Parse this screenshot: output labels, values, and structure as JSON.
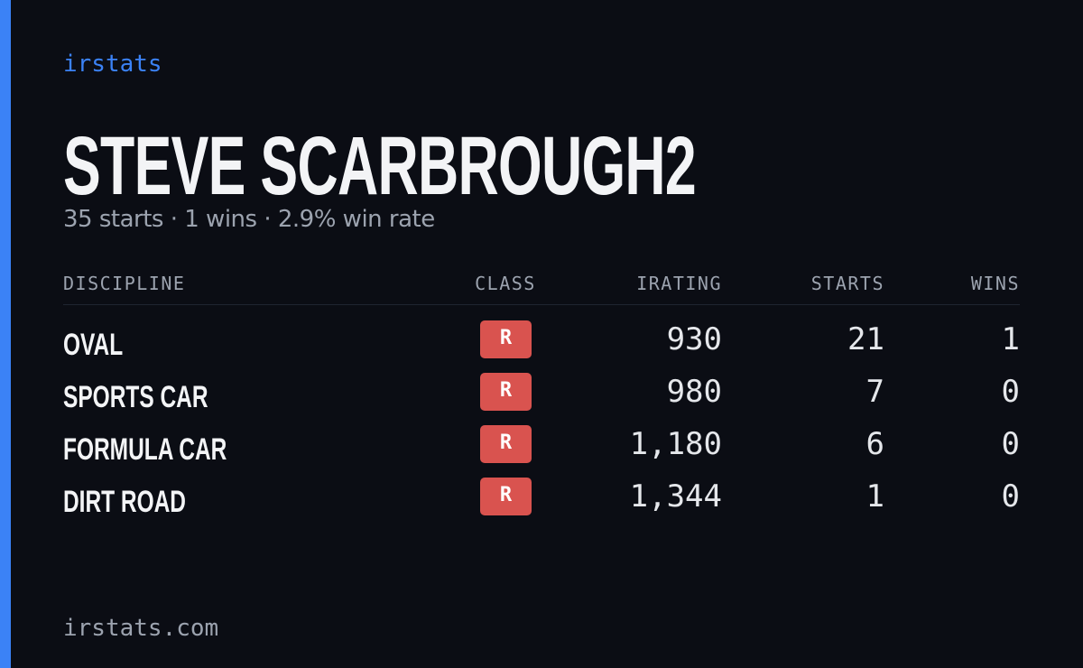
{
  "brand": "irstats",
  "title": "STEVE SCARBROUGH2",
  "subtitle": "35 starts · 1 wins · 2.9% win rate",
  "table": {
    "headers": [
      "DISCIPLINE",
      "CLASS",
      "IRATING",
      "STARTS",
      "WINS"
    ],
    "rows": [
      [
        "OVAL",
        "R",
        "930",
        "21",
        "1"
      ],
      [
        "SPORTS CAR",
        "R",
        "980",
        "7",
        "0"
      ],
      [
        "FORMULA CAR",
        "R",
        "1,180",
        "6",
        "0"
      ],
      [
        "DIRT ROAD",
        "R",
        "1,344",
        "1",
        "0"
      ]
    ]
  },
  "footer": "irstats.com"
}
